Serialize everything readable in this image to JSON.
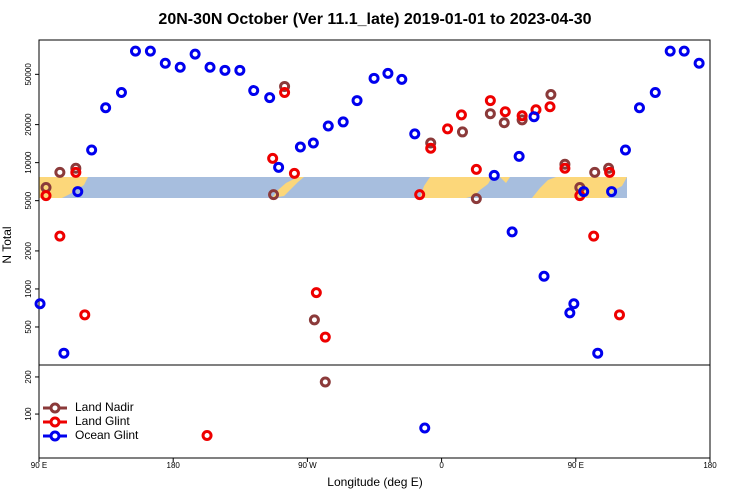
{
  "chart_data": [
    {
      "type": "scatter",
      "title": "20N-30N October (Ver 11.1_late)   2019-01-01 to 2023-04-30",
      "ylabel": "N Total",
      "log_y": true,
      "xlim": [
        90,
        540
      ],
      "ylim": [
        250,
        93500
      ],
      "yticks": [
        500,
        1000,
        2000,
        5000,
        10000,
        20000,
        50000
      ],
      "series": [
        {
          "color": "#8b3a3a",
          "x": [
            94.7,
            104,
            114.7,
            247.3,
            254.7,
            274.7,
            383.3,
            352.7,
            374,
            392.7,
            402,
            414,
            433.3,
            442.7,
            452.7,
            462.7,
            472
          ],
          "values": [
            6350,
            8380,
            9020,
            5580,
            40100,
            569,
            5190,
            14300,
            17500,
            24400,
            20700,
            21800,
            34600,
            9710,
            6350,
            8380,
            9020
          ]
        },
        {
          "color": "#ee0000",
          "x": [
            94.7,
            104,
            114.7,
            120.7,
            246.7,
            254.7,
            261.3,
            276,
            282,
            345.3,
            352.7,
            364,
            373.3,
            383.3,
            392.7,
            402.7,
            414,
            423.3,
            432.7,
            442.7,
            452.7,
            462,
            472.7,
            479.3
          ],
          "values": [
            5480,
            2620,
            8380,
            624,
            10800,
            35900,
            8220,
            935,
            416,
            5580,
            13000,
            18500,
            23900,
            8850,
            31000,
            25300,
            23500,
            26200,
            27700,
            9020,
            5480,
            2620,
            8380,
            624
          ]
        },
        {
          "color": "#0000ee",
          "x": [
            90.7,
            106.7,
            116,
            125.3,
            134.7,
            145.3,
            154.7,
            164.7,
            174.7,
            184.7,
            194.7,
            204.7,
            214.7,
            224.7,
            234,
            244.7,
            250.7,
            265.3,
            274,
            284,
            294,
            303.3,
            314.7,
            324,
            333.3,
            342,
            395.3,
            407.3,
            412,
            422,
            428.7,
            446,
            448.7,
            455.3,
            464.7,
            474,
            483.3,
            492.7,
            503.3,
            513.3,
            522.7,
            532.7
          ],
          "values": [
            764,
            310,
            5900,
            12600,
            27200,
            35900,
            76400,
            76400,
            61200,
            56900,
            72300,
            56900,
            53800,
            53800,
            37200,
            32700,
            9180,
            13300,
            14300,
            19500,
            21000,
            31000,
            46500,
            50900,
            45600,
            16900,
            7930,
            2830,
            11200,
            23100,
            1260,
            647,
            764,
            5900,
            310,
            5900,
            12600,
            27200,
            35900,
            76400,
            76400,
            61200
          ]
        }
      ]
    },
    {
      "type": "scatter",
      "xlabel": "Longitude (deg E)",
      "log_y": true,
      "xlim": [
        90,
        540
      ],
      "ylim": [
        44,
        250
      ],
      "yticks": [
        100,
        200
      ],
      "xticks": [
        {
          "value": 90,
          "label": "90 E"
        },
        {
          "value": 180,
          "label": "180"
        },
        {
          "value": 270,
          "label": "90 W"
        },
        {
          "value": 360,
          "label": "0"
        },
        {
          "value": 450,
          "label": "90 E"
        },
        {
          "value": 540,
          "label": "180"
        }
      ],
      "legend": "lower left",
      "series": [
        {
          "name": "Land Nadir",
          "color": "#8b3a3a",
          "x": [
            282
          ],
          "values": [
            182
          ]
        },
        {
          "name": "Land Glint",
          "color": "#ee0000",
          "x": [
            202.7
          ],
          "values": [
            67
          ]
        },
        {
          "name": "Ocean Glint",
          "color": "#0000ee",
          "x": [
            348.7
          ],
          "values": [
            77
          ]
        }
      ]
    }
  ]
}
